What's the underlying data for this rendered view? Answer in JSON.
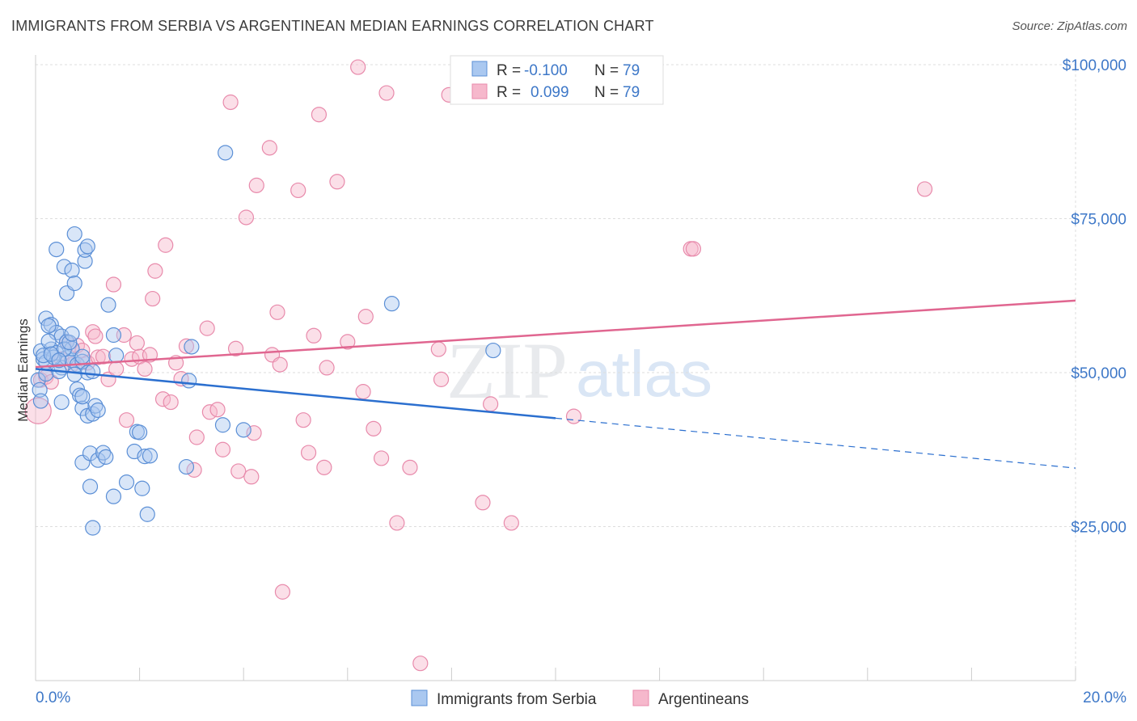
{
  "title": "IMMIGRANTS FROM SERBIA VS ARGENTINEAN MEDIAN EARNINGS CORRELATION CHART",
  "source": "Source: ZipAtlas.com",
  "watermark": {
    "zip": "ZIP",
    "atlas": "atlas"
  },
  "colors": {
    "blue_fill": "#aac8f0",
    "blue_stroke": "#5b8fd6",
    "blue_line": "#2b6fcf",
    "pink_fill": "#f6b8cc",
    "pink_stroke": "#e88aab",
    "pink_line": "#e06690",
    "axis_text": "#3e78c8",
    "grid": "#dddddd"
  },
  "legend": {
    "rows": [
      {
        "r_label": "R =",
        "r_value": "-0.100",
        "n_label": "N =",
        "n_value": "79"
      },
      {
        "r_label": "R =",
        "r_value": "0.099",
        "n_label": "N =",
        "n_value": "79"
      }
    ]
  },
  "bottom_legend": [
    "Immigrants from Serbia",
    "Argentineans"
  ],
  "chart_data": {
    "type": "scatter",
    "title": "IMMIGRANTS FROM SERBIA VS ARGENTINEAN MEDIAN EARNINGS CORRELATION CHART",
    "xlabel": "",
    "ylabel": "Median Earnings",
    "xlim": [
      0,
      20
    ],
    "ylim": [
      0,
      100000
    ],
    "x_tick_labels": [
      "0.0%",
      "20.0%"
    ],
    "y_ticks": [
      25000,
      50000,
      75000,
      100000
    ],
    "y_tick_labels": [
      "$25,000",
      "$50,000",
      "$75,000",
      "$100,000"
    ],
    "grid": true,
    "series": [
      {
        "name": "Immigrants from Serbia",
        "r": -0.1,
        "n": 79,
        "trend": {
          "x0": 0,
          "y0": 50600,
          "x1": 10,
          "y1": 42600,
          "dash_x1": 20,
          "dash_y1": 34500
        },
        "points": [
          [
            0.1,
            53.5
          ],
          [
            0.15,
            52.2
          ],
          [
            0.2,
            51.7
          ],
          [
            0.3,
            53.8
          ],
          [
            0.4,
            53.2
          ],
          [
            0.5,
            50.8
          ],
          [
            0.6,
            52.4
          ],
          [
            0.7,
            52.0
          ],
          [
            0.8,
            51.3
          ],
          [
            0.9,
            51.8
          ],
          [
            0.2,
            58.8
          ],
          [
            0.3,
            57.8
          ],
          [
            0.4,
            56.5
          ],
          [
            0.5,
            55.9
          ],
          [
            0.6,
            55.0
          ],
          [
            0.7,
            53.9
          ],
          [
            0.9,
            52.6
          ],
          [
            1.0,
            50.0
          ],
          [
            0.25,
            57.6
          ],
          [
            0.35,
            52.5
          ],
          [
            0.05,
            48.8
          ],
          [
            0.08,
            47.2
          ],
          [
            0.1,
            45.4
          ],
          [
            0.15,
            52.8
          ],
          [
            0.2,
            49.8
          ],
          [
            0.25,
            55.1
          ],
          [
            0.45,
            50.2
          ],
          [
            0.55,
            53.8
          ],
          [
            0.75,
            49.7
          ],
          [
            0.65,
            54.9
          ],
          [
            0.4,
            70.0
          ],
          [
            0.55,
            67.2
          ],
          [
            0.6,
            62.9
          ],
          [
            0.7,
            66.6
          ],
          [
            0.75,
            64.5
          ],
          [
            0.75,
            72.5
          ],
          [
            0.95,
            68.1
          ],
          [
            0.95,
            69.9
          ],
          [
            1.0,
            70.5
          ],
          [
            1.4,
            61.0
          ],
          [
            1.5,
            56.1
          ],
          [
            1.55,
            52.8
          ],
          [
            1.1,
            50.2
          ],
          [
            0.8,
            47.3
          ],
          [
            0.85,
            46.3
          ],
          [
            0.9,
            44.2
          ],
          [
            0.9,
            46.1
          ],
          [
            1.0,
            43.0
          ],
          [
            1.1,
            43.3
          ],
          [
            1.15,
            44.6
          ],
          [
            1.2,
            43.9
          ],
          [
            0.5,
            45.2
          ],
          [
            0.9,
            35.4
          ],
          [
            1.05,
            36.9
          ],
          [
            1.2,
            35.8
          ],
          [
            1.3,
            37.0
          ],
          [
            1.35,
            36.3
          ],
          [
            1.05,
            31.5
          ],
          [
            1.5,
            29.9
          ],
          [
            1.75,
            32.2
          ],
          [
            1.9,
            37.2
          ],
          [
            1.95,
            40.4
          ],
          [
            2.0,
            40.3
          ],
          [
            2.05,
            31.2
          ],
          [
            2.1,
            36.4
          ],
          [
            2.2,
            36.5
          ],
          [
            2.15,
            27.0
          ],
          [
            1.1,
            24.8
          ],
          [
            2.9,
            34.7
          ],
          [
            2.95,
            48.7
          ],
          [
            3.0,
            54.2
          ],
          [
            3.6,
            41.5
          ],
          [
            4.0,
            40.7
          ],
          [
            3.65,
            85.7
          ],
          [
            6.85,
            61.2
          ],
          [
            8.8,
            53.6
          ],
          [
            0.3,
            53.0
          ],
          [
            0.45,
            52.0
          ],
          [
            0.7,
            56.3
          ]
        ]
      },
      {
        "name": "Argentineans",
        "r": 0.099,
        "n": 79,
        "trend": {
          "x0": 0,
          "y0": 50900,
          "x1": 20,
          "y1": 61700
        },
        "points": [
          [
            0.05,
            43.8
          ],
          [
            0.1,
            48.8
          ],
          [
            0.2,
            49.3
          ],
          [
            0.3,
            48.5
          ],
          [
            0.5,
            52.2
          ],
          [
            0.6,
            55.0
          ],
          [
            0.7,
            51.3
          ],
          [
            0.8,
            54.4
          ],
          [
            0.9,
            53.6
          ],
          [
            1.0,
            51.6
          ],
          [
            1.1,
            56.6
          ],
          [
            1.15,
            55.9
          ],
          [
            1.2,
            52.5
          ],
          [
            1.3,
            52.6
          ],
          [
            1.4,
            48.9
          ],
          [
            1.55,
            50.6
          ],
          [
            1.7,
            56.1
          ],
          [
            1.75,
            42.3
          ],
          [
            1.85,
            52.2
          ],
          [
            1.95,
            54.8
          ],
          [
            2.0,
            52.6
          ],
          [
            2.1,
            50.6
          ],
          [
            2.2,
            52.9
          ],
          [
            2.3,
            66.5
          ],
          [
            2.5,
            70.7
          ],
          [
            2.45,
            45.7
          ],
          [
            2.6,
            45.2
          ],
          [
            2.7,
            51.6
          ],
          [
            2.8,
            49.0
          ],
          [
            2.9,
            54.3
          ],
          [
            3.1,
            39.5
          ],
          [
            3.05,
            34.2
          ],
          [
            3.3,
            57.2
          ],
          [
            3.35,
            43.6
          ],
          [
            3.5,
            44.0
          ],
          [
            3.6,
            37.5
          ],
          [
            3.75,
            93.9
          ],
          [
            3.9,
            34.0
          ],
          [
            4.05,
            75.2
          ],
          [
            4.15,
            33.1
          ],
          [
            4.2,
            40.2
          ],
          [
            4.25,
            80.4
          ],
          [
            4.5,
            86.5
          ],
          [
            4.55,
            52.9
          ],
          [
            4.65,
            59.8
          ],
          [
            4.7,
            51.3
          ],
          [
            4.75,
            14.4
          ],
          [
            5.05,
            79.6
          ],
          [
            5.15,
            42.3
          ],
          [
            5.25,
            37.0
          ],
          [
            5.35,
            56.0
          ],
          [
            5.45,
            91.9
          ],
          [
            5.55,
            34.6
          ],
          [
            5.6,
            50.8
          ],
          [
            5.8,
            81.0
          ],
          [
            6.0,
            55.0
          ],
          [
            6.2,
            99.6
          ],
          [
            6.3,
            46.9
          ],
          [
            6.35,
            59.1
          ],
          [
            6.5,
            40.9
          ],
          [
            6.65,
            36.1
          ],
          [
            6.75,
            95.4
          ],
          [
            6.95,
            25.6
          ],
          [
            7.2,
            34.6
          ],
          [
            7.4,
            2.8
          ],
          [
            7.75,
            53.8
          ],
          [
            7.8,
            48.9
          ],
          [
            7.95,
            95.1
          ],
          [
            8.2,
            94.9
          ],
          [
            8.6,
            28.9
          ],
          [
            8.75,
            44.9
          ],
          [
            9.15,
            25.6
          ],
          [
            10.35,
            42.9
          ],
          [
            12.6,
            70.1
          ],
          [
            12.65,
            70.1
          ],
          [
            17.1,
            79.8
          ],
          [
            2.25,
            62.0
          ],
          [
            1.5,
            64.3
          ],
          [
            3.85,
            53.9
          ]
        ]
      }
    ]
  }
}
